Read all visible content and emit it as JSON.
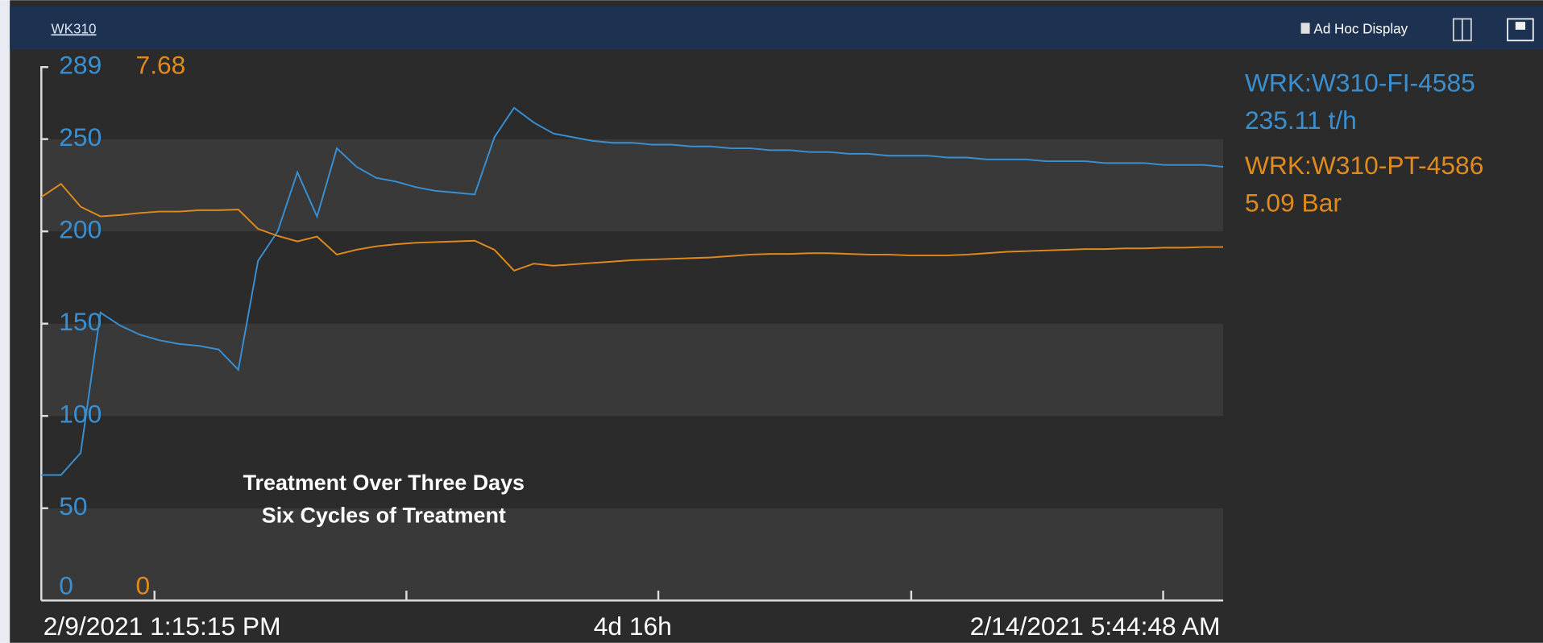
{
  "header": {
    "title": "WK310",
    "button": "Ad Hoc Display"
  },
  "chart_data": {
    "type": "line",
    "annotations": [
      "Treatment Over Three Days",
      "Six Cycles of Treatment"
    ],
    "x_start": "2/9/2021 1:15:15 PM",
    "x_end": "2/14/2021 5:44:48 AM",
    "x_span": "4d 16h",
    "ylim": [
      0,
      289
    ],
    "yticks": [
      0,
      50,
      100,
      150,
      200,
      250,
      289
    ],
    "y2lim": [
      0,
      7.68
    ],
    "y2ticks": [
      0,
      7.68
    ],
    "grid": true,
    "series": [
      {
        "name": "WRK:W310-FI-4585",
        "color": "#3a8fd0",
        "current": 235.11,
        "current_label": "235.11 t/h",
        "values": [
          68,
          68,
          80,
          156,
          149,
          144,
          141,
          139,
          138,
          136,
          125,
          184,
          200,
          232,
          208,
          245,
          235,
          229,
          227,
          224,
          222,
          221,
          220,
          251,
          267,
          259,
          253,
          251,
          249,
          248,
          248,
          247,
          247,
          246,
          246,
          245,
          245,
          244,
          244,
          243,
          243,
          242,
          242,
          241,
          241,
          241,
          240,
          240,
          239,
          239,
          239,
          238,
          238,
          238,
          237,
          237,
          237,
          236,
          236,
          236,
          235
        ]
      },
      {
        "name": "WRK:W310-PT-4586",
        "color": "#e08a1e",
        "axis": "y2",
        "current": 5.09,
        "current_label": "5.09 Bar",
        "values": [
          5.81,
          6.0,
          5.67,
          5.53,
          5.55,
          5.58,
          5.6,
          5.6,
          5.62,
          5.62,
          5.63,
          5.35,
          5.25,
          5.17,
          5.24,
          4.98,
          5.05,
          5.1,
          5.13,
          5.15,
          5.16,
          5.17,
          5.18,
          5.05,
          4.75,
          4.85,
          4.82,
          4.84,
          4.86,
          4.88,
          4.9,
          4.91,
          4.92,
          4.93,
          4.94,
          4.96,
          4.98,
          4.99,
          4.99,
          5.0,
          5.0,
          4.99,
          4.98,
          4.98,
          4.97,
          4.97,
          4.97,
          4.98,
          5.0,
          5.02,
          5.03,
          5.04,
          5.05,
          5.06,
          5.06,
          5.07,
          5.07,
          5.08,
          5.08,
          5.09,
          5.09
        ]
      }
    ]
  }
}
